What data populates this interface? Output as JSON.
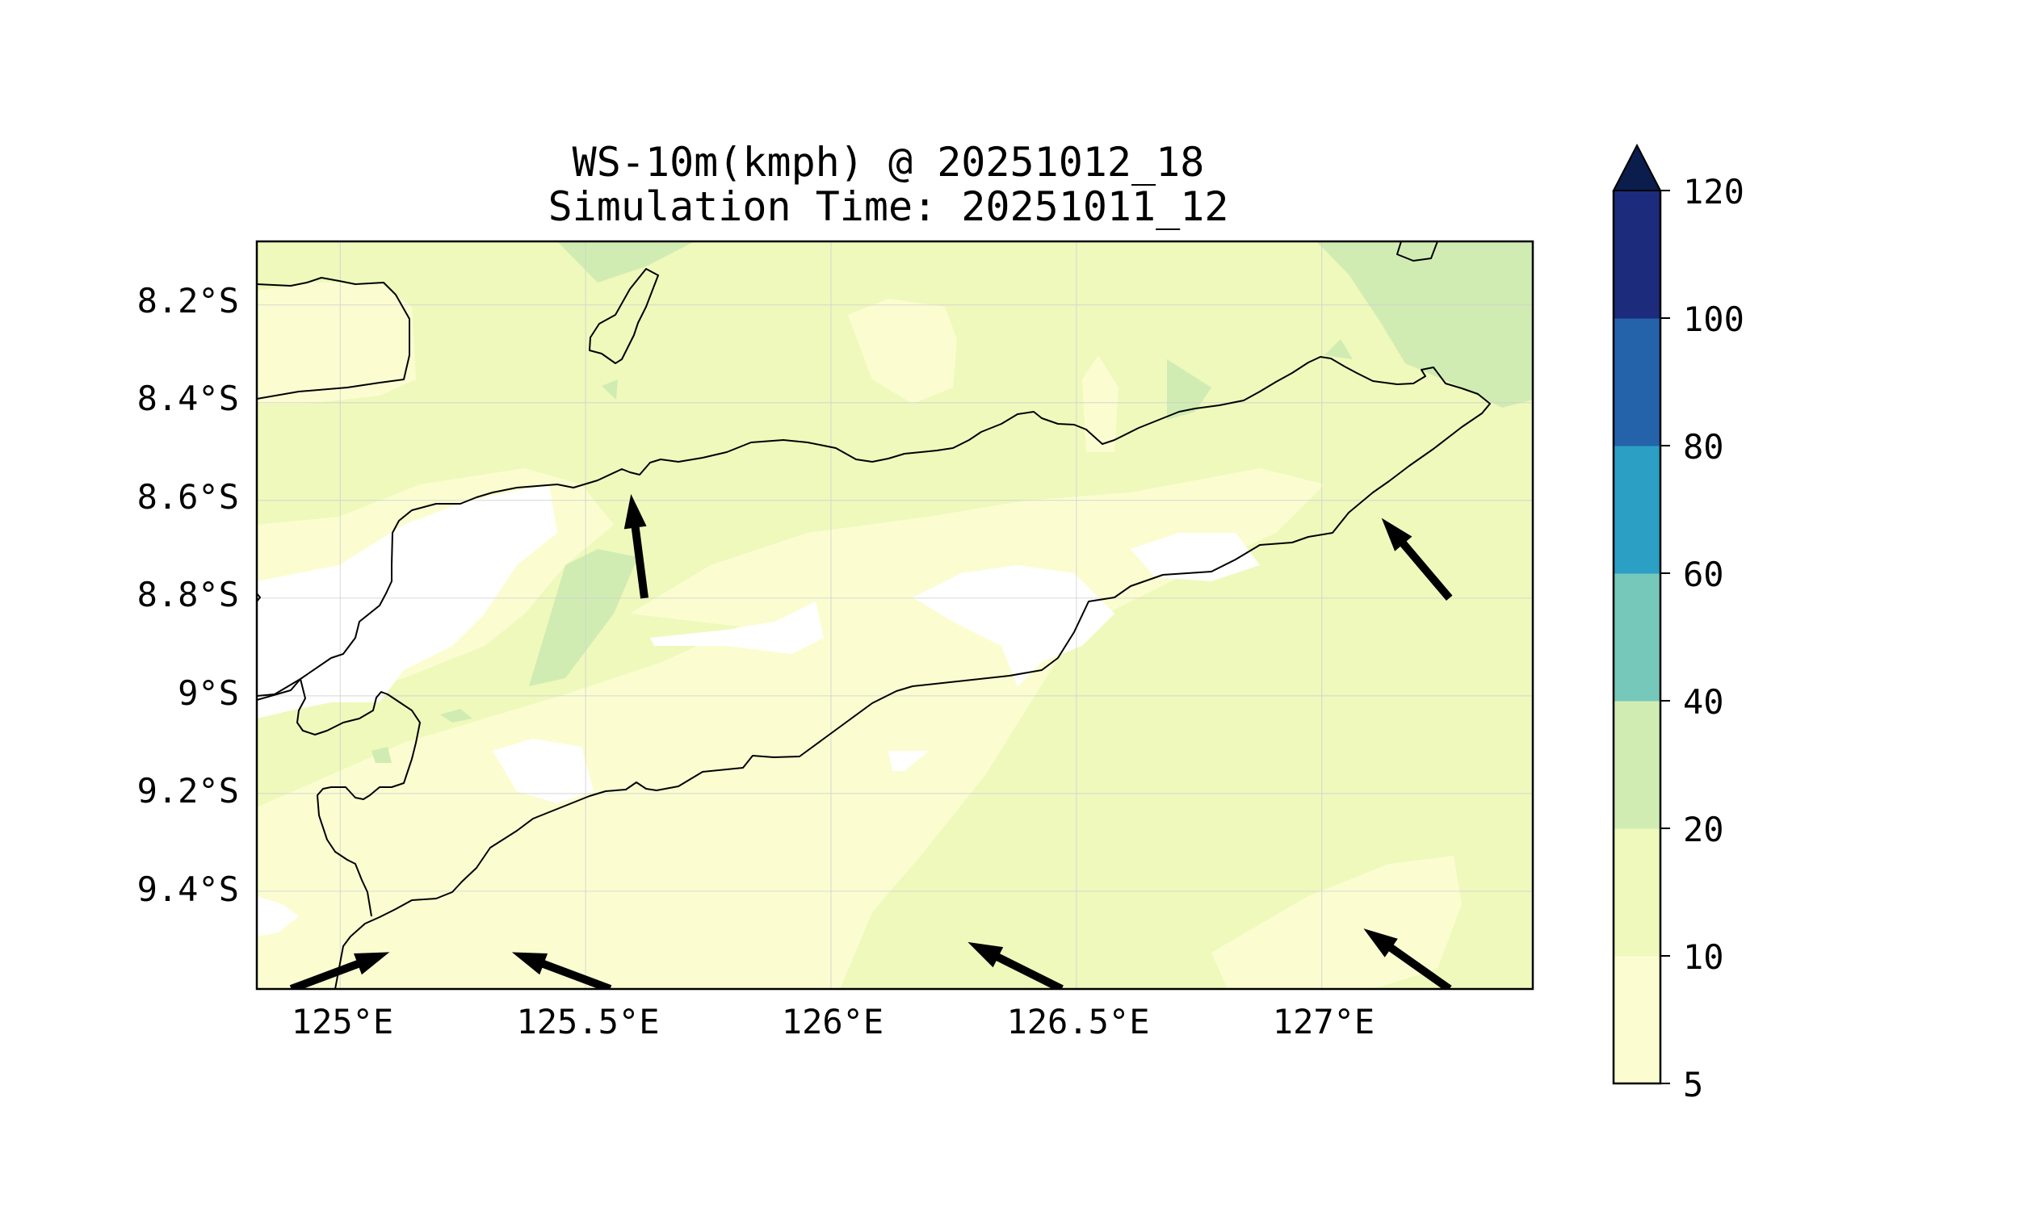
{
  "title": {
    "line1": "WS-10m(kmph) @ 20251012_18",
    "line2": "Simulation Time: 20251011_12"
  },
  "map": {
    "extent": {
      "lon_min": 124.83,
      "lon_max": 127.43,
      "lat_min": -9.6,
      "lat_max": -8.07
    },
    "x_ticks": [
      {
        "lon": 125.0,
        "label": "125°E"
      },
      {
        "lon": 125.5,
        "label": "125.5°E"
      },
      {
        "lon": 126.0,
        "label": "126°E"
      },
      {
        "lon": 126.5,
        "label": "126.5°E"
      },
      {
        "lon": 127.0,
        "label": "127°E"
      }
    ],
    "y_ticks": [
      {
        "lat": -8.2,
        "label": "8.2°S"
      },
      {
        "lat": -8.4,
        "label": "8.4°S"
      },
      {
        "lat": -8.6,
        "label": "8.6°S"
      },
      {
        "lat": -8.8,
        "label": "8.8°S"
      },
      {
        "lat": -9.0,
        "label": "9°S"
      },
      {
        "lat": -9.2,
        "label": "9.2°S"
      },
      {
        "lat": -9.4,
        "label": "9.4°S"
      }
    ],
    "gridlines": true,
    "wind_arrows": [
      {
        "lon": 125.62,
        "lat": -8.8,
        "u": -0.13,
        "v": 1.0
      },
      {
        "lon": 127.26,
        "lat": -8.8,
        "u": -0.72,
        "v": 0.85
      },
      {
        "lon": 126.47,
        "lat": -9.6,
        "u": -0.9,
        "v": 0.45
      },
      {
        "lon": 127.26,
        "lat": -9.6,
        "u": -0.78,
        "v": 0.55
      },
      {
        "lon": 124.9,
        "lat": -9.6,
        "u": 0.8,
        "v": 0.3
      },
      {
        "lon": 125.55,
        "lat": -9.6,
        "u": -0.8,
        "v": 0.3
      }
    ]
  },
  "colorbar": {
    "levels": [
      5,
      10,
      20,
      40,
      60,
      80,
      100,
      120
    ],
    "labels": [
      "5",
      "10",
      "20",
      "40",
      "60",
      "80",
      "100",
      "120"
    ],
    "colors": [
      "#fbfdd1",
      "#eff9bc",
      "#d0ecb3",
      "#76c8bb",
      "#2b9fc4",
      "#2462aa",
      "#1c2b7c"
    ],
    "extend_color": "#0b1d4c",
    "extend": "max"
  },
  "colors": {
    "below_min": "#ffffff",
    "class_5_10": "#fbfdd1",
    "class_10_20": "#eff9bc",
    "class_20_40": "#d0ecb3",
    "coastline": "#000000",
    "arrow": "#000000"
  }
}
